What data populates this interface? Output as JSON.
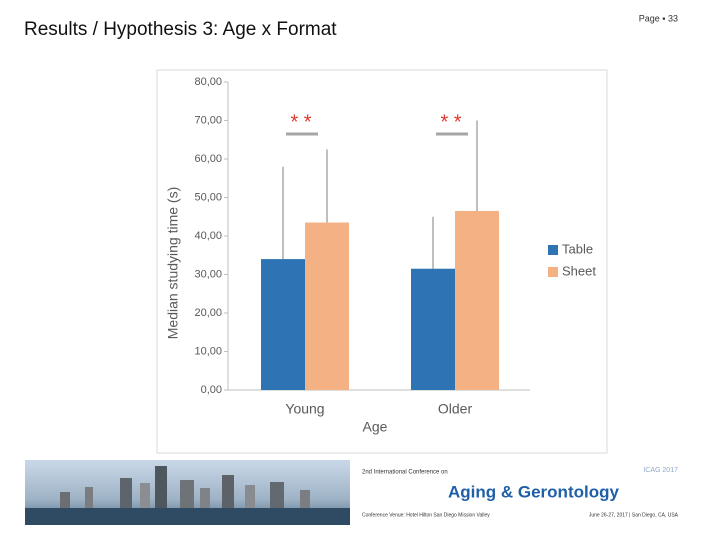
{
  "slide_title": "Results / Hypothesis 3: Age x Format",
  "page_number": "Page ▪ 33",
  "chart_data": {
    "type": "bar",
    "x_label": "Age",
    "y_label": "Median studying time (s)",
    "categories": [
      "Young",
      "Older"
    ],
    "series": [
      {
        "name": "Table",
        "color": "#2e74b5",
        "values": [
          34,
          31.5
        ],
        "errors": [
          24,
          13.5
        ]
      },
      {
        "name": "Sheet",
        "color": "#f4b183",
        "values": [
          43.5,
          46.5
        ],
        "errors": [
          19,
          23.5
        ]
      }
    ],
    "annotations": [
      "* *",
      "* *"
    ],
    "ylim": [
      0,
      80
    ],
    "yticks": [
      {
        "value": 0,
        "label": "0,00"
      },
      {
        "value": 10,
        "label": "10,00"
      },
      {
        "value": 20,
        "label": "20,00"
      },
      {
        "value": 30,
        "label": "30,00"
      },
      {
        "value": 40,
        "label": "40,00"
      },
      {
        "value": 50,
        "label": "50,00"
      },
      {
        "value": 60,
        "label": "60,00"
      },
      {
        "value": 70,
        "label": "70,00"
      },
      {
        "value": 80,
        "label": "80,00"
      }
    ],
    "legend": "right"
  },
  "footer": {
    "conference_line": "2nd International Conference on",
    "conference_name": "Aging & Gerontology",
    "venue": "Conference Venue: Hotel Hilton San Diego Mission Valley",
    "dates": "June 26-27, 2017 | San Diego, CA, USA",
    "badge": "ICAG 2017"
  }
}
